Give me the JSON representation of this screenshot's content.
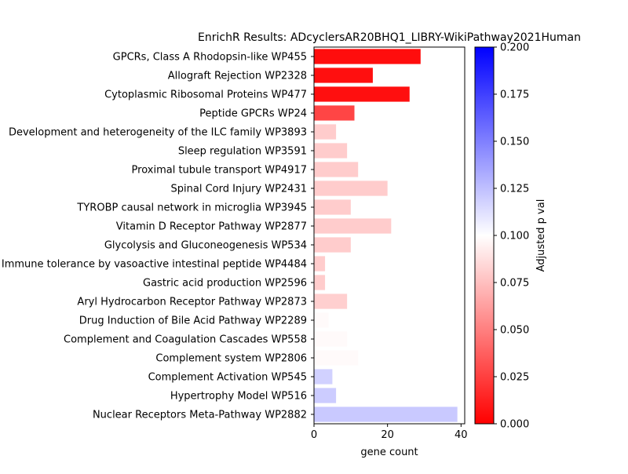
{
  "chart_data": {
    "type": "bar",
    "orientation": "horizontal",
    "title": "EnrichR Results: ADcyclersAR20BHQ1_LIBRY-WikiPathway2021Human",
    "xlabel": "gene count",
    "ylabel": "",
    "xlim": [
      0,
      41
    ],
    "xticks": [
      "0",
      "20",
      "40"
    ],
    "categories": [
      "GPCRs, Class A Rhodopsin-like WP455",
      "Allograft Rejection WP2328",
      "Cytoplasmic Ribosomal Proteins WP477",
      "Peptide GPCRs WP24",
      "Development and heterogeneity of the ILC family WP3893",
      "Sleep regulation WP3591",
      "Proximal tubule transport WP4917",
      "Spinal Cord Injury WP2431",
      "TYROBP causal network in microglia WP3945",
      "Vitamin D Receptor Pathway WP2877",
      "Glycolysis and Gluconeogenesis WP534",
      "Immune tolerance by vasoactive intestinal peptide WP4484",
      "Gastric acid production WP2596",
      "Aryl Hydrocarbon Receptor Pathway WP2873",
      "Drug Induction of Bile Acid Pathway WP2289",
      "Complement and Coagulation Cascades WP558",
      "Complement system WP2806",
      "Complement Activation WP545",
      "Hypertrophy Model WP516",
      "Nuclear Receptors Meta-Pathway WP2882"
    ],
    "values": [
      29,
      16,
      26,
      11,
      6,
      9,
      12,
      20,
      10,
      21,
      10,
      3,
      3,
      9,
      4,
      9,
      12,
      5,
      6,
      39
    ],
    "adjusted_p_val": [
      0.005,
      0.006,
      0.006,
      0.027,
      0.08,
      0.08,
      0.08,
      0.08,
      0.08,
      0.08,
      0.08,
      0.08,
      0.08,
      0.081,
      0.098,
      0.098,
      0.098,
      0.118,
      0.12,
      0.121
    ],
    "colorbar": {
      "label": "Adjusted p val",
      "range": [
        0,
        0.2
      ],
      "ticks": [
        "0.000",
        "0.025",
        "0.050",
        "0.075",
        "0.100",
        "0.125",
        "0.150",
        "0.175",
        "0.200"
      ],
      "colors": {
        "low": "#ff0000",
        "mid": "#ffffff",
        "high": "#0000ff"
      }
    },
    "grid": false,
    "legend": "colorbar-right"
  }
}
